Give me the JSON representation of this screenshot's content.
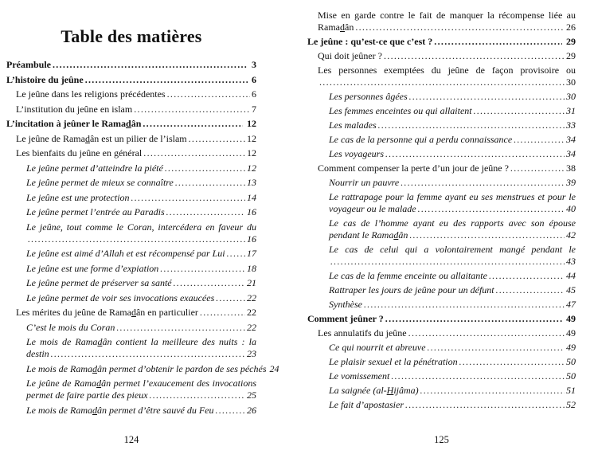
{
  "colors": {
    "text": "#111111",
    "background": "#ffffff"
  },
  "left_page": {
    "title": "Table des matières",
    "folio": "124",
    "entries": [
      {
        "level": 1,
        "lines": [
          "Préambule"
        ],
        "page": "3"
      },
      {
        "level": 1,
        "lines": [
          "L’histoire du jeûne"
        ],
        "page": "6"
      },
      {
        "level": 2,
        "lines": [
          "Le jeûne dans les religions précédentes"
        ],
        "page": "6"
      },
      {
        "level": 2,
        "lines": [
          "L’institution du jeûne en islam"
        ],
        "page": "7"
      },
      {
        "level": 1,
        "lines": [
          "L’incitation à jeûner le Rama_d_ân"
        ],
        "page": "12"
      },
      {
        "level": 2,
        "lines": [
          "Le jeûne de Rama_d_ân est un pilier de l’islam"
        ],
        "page": "12"
      },
      {
        "level": 2,
        "lines": [
          "Les bienfaits du jeûne en général"
        ],
        "page": "12"
      },
      {
        "level": 3,
        "lines": [
          "Le jeûne permet d’atteindre la piété"
        ],
        "page": "12"
      },
      {
        "level": 3,
        "lines": [
          "Le jeûne permet de mieux se connaître"
        ],
        "page": "13"
      },
      {
        "level": 3,
        "lines": [
          "Le jeûne est une protection"
        ],
        "page": "14"
      },
      {
        "level": 3,
        "lines": [
          "Le jeûne permet l’entrée au Paradis"
        ],
        "page": "16"
      },
      {
        "level": 3,
        "lines": [
          "Le jeûne, tout comme le Coran, intercédera en faveur du croyant",
          ""
        ],
        "page": "16"
      },
      {
        "level": 3,
        "lines": [
          "Le jeûne est aimé d’Allah et est récompensé par Lui"
        ],
        "page": "17"
      },
      {
        "level": 3,
        "lines": [
          "Le jeûne est une forme d’expiation"
        ],
        "page": "18"
      },
      {
        "level": 3,
        "lines": [
          "Le jeûne permet de préserver sa santé"
        ],
        "page": "21"
      },
      {
        "level": 3,
        "lines": [
          "Le jeûne permet de voir ses invocations exaucées"
        ],
        "page": "22"
      },
      {
        "level": 2,
        "lines": [
          "Les mérites du jeûne de Rama_d_ân en particulier"
        ],
        "page": "22"
      },
      {
        "level": 3,
        "lines": [
          "C’est le mois du Coran"
        ],
        "page": "22"
      },
      {
        "level": 3,
        "lines": [
          "Le mois de Rama_d_ân contient la meilleure des nuits : la nuit du",
          "destin"
        ],
        "page": "23"
      },
      {
        "level": 3,
        "lines": [
          "Le mois de Rama_d_ân permet d’obtenir le pardon de ses péchés"
        ],
        "page": "24",
        "dots": false
      },
      {
        "level": 3,
        "lines": [
          "Le jeûne de Rama_d_ân permet l’exaucement des invocations et",
          "permet de faire partie des pieux"
        ],
        "page": "25"
      },
      {
        "level": 3,
        "lines": [
          "Le mois de Rama_d_ân permet d’être sauvé du Feu"
        ],
        "page": "26"
      }
    ]
  },
  "right_page": {
    "folio": "125",
    "entries": [
      {
        "level": 2,
        "lines": [
          "Mise en garde contre le fait de manquer la récompense liée au",
          "Rama_d_ân"
        ],
        "page": "26"
      },
      {
        "level": 1,
        "lines": [
          "Le jeûne : qu’est-ce que c’est ?"
        ],
        "page": "29"
      },
      {
        "level": 2,
        "lines": [
          "Qui doit jeûner ?"
        ],
        "page": "29"
      },
      {
        "level": 2,
        "lines": [
          "Les personnes exemptées du jeûne de façon provisoire ou définitive",
          ""
        ],
        "page": "30"
      },
      {
        "level": 3,
        "lines": [
          "Les personnes âgées"
        ],
        "page": "30"
      },
      {
        "level": 3,
        "lines": [
          "Les femmes enceintes ou qui allaitent"
        ],
        "page": "31"
      },
      {
        "level": 3,
        "lines": [
          "Les malades"
        ],
        "page": "33"
      },
      {
        "level": 3,
        "lines": [
          "Le cas de la personne qui a perdu connaissance"
        ],
        "page": "34"
      },
      {
        "level": 3,
        "lines": [
          "Les voyageurs"
        ],
        "page": "34"
      },
      {
        "level": 2,
        "lines": [
          "Comment compenser la perte d’un jour de jeûne ?"
        ],
        "page": "38"
      },
      {
        "level": 3,
        "lines": [
          "Nourrir un pauvre"
        ],
        "page": "39"
      },
      {
        "level": 3,
        "lines": [
          "Le rattrapage pour la femme ayant eu ses menstrues et pour le",
          "voyageur ou le malade"
        ],
        "page": "40"
      },
      {
        "level": 3,
        "lines": [
          "Le cas de l’homme ayant eu des rapports avec son épouse",
          "pendant le Rama_d_ân"
        ],
        "page": "42"
      },
      {
        "level": 3,
        "lines": [
          "Le cas de celui qui a volontairement mangé pendant le Rama_d_ân",
          ""
        ],
        "page": "43"
      },
      {
        "level": 3,
        "lines": [
          "Le cas de la femme enceinte ou allaitante"
        ],
        "page": "44"
      },
      {
        "level": 3,
        "lines": [
          "Rattraper les jours de jeûne pour un défunt"
        ],
        "page": "45"
      },
      {
        "level": 3,
        "lines": [
          "Synthèse"
        ],
        "page": "47"
      },
      {
        "level": 1,
        "lines": [
          "Comment jeûner ?"
        ],
        "page": "49"
      },
      {
        "level": 2,
        "lines": [
          "Les annulatifs du jeûne"
        ],
        "page": "49"
      },
      {
        "level": 3,
        "lines": [
          "Ce qui nourrit et abreuve"
        ],
        "page": "49"
      },
      {
        "level": 3,
        "lines": [
          "Le plaisir sexuel et la pénétration"
        ],
        "page": "50"
      },
      {
        "level": 3,
        "lines": [
          "Le vomissement"
        ],
        "page": "50"
      },
      {
        "level": 3,
        "lines": [
          "La saignée (al-_H_ijâma)"
        ],
        "page": "51"
      },
      {
        "level": 3,
        "lines": [
          "Le fait d’apostasier"
        ],
        "page": "52"
      }
    ]
  }
}
